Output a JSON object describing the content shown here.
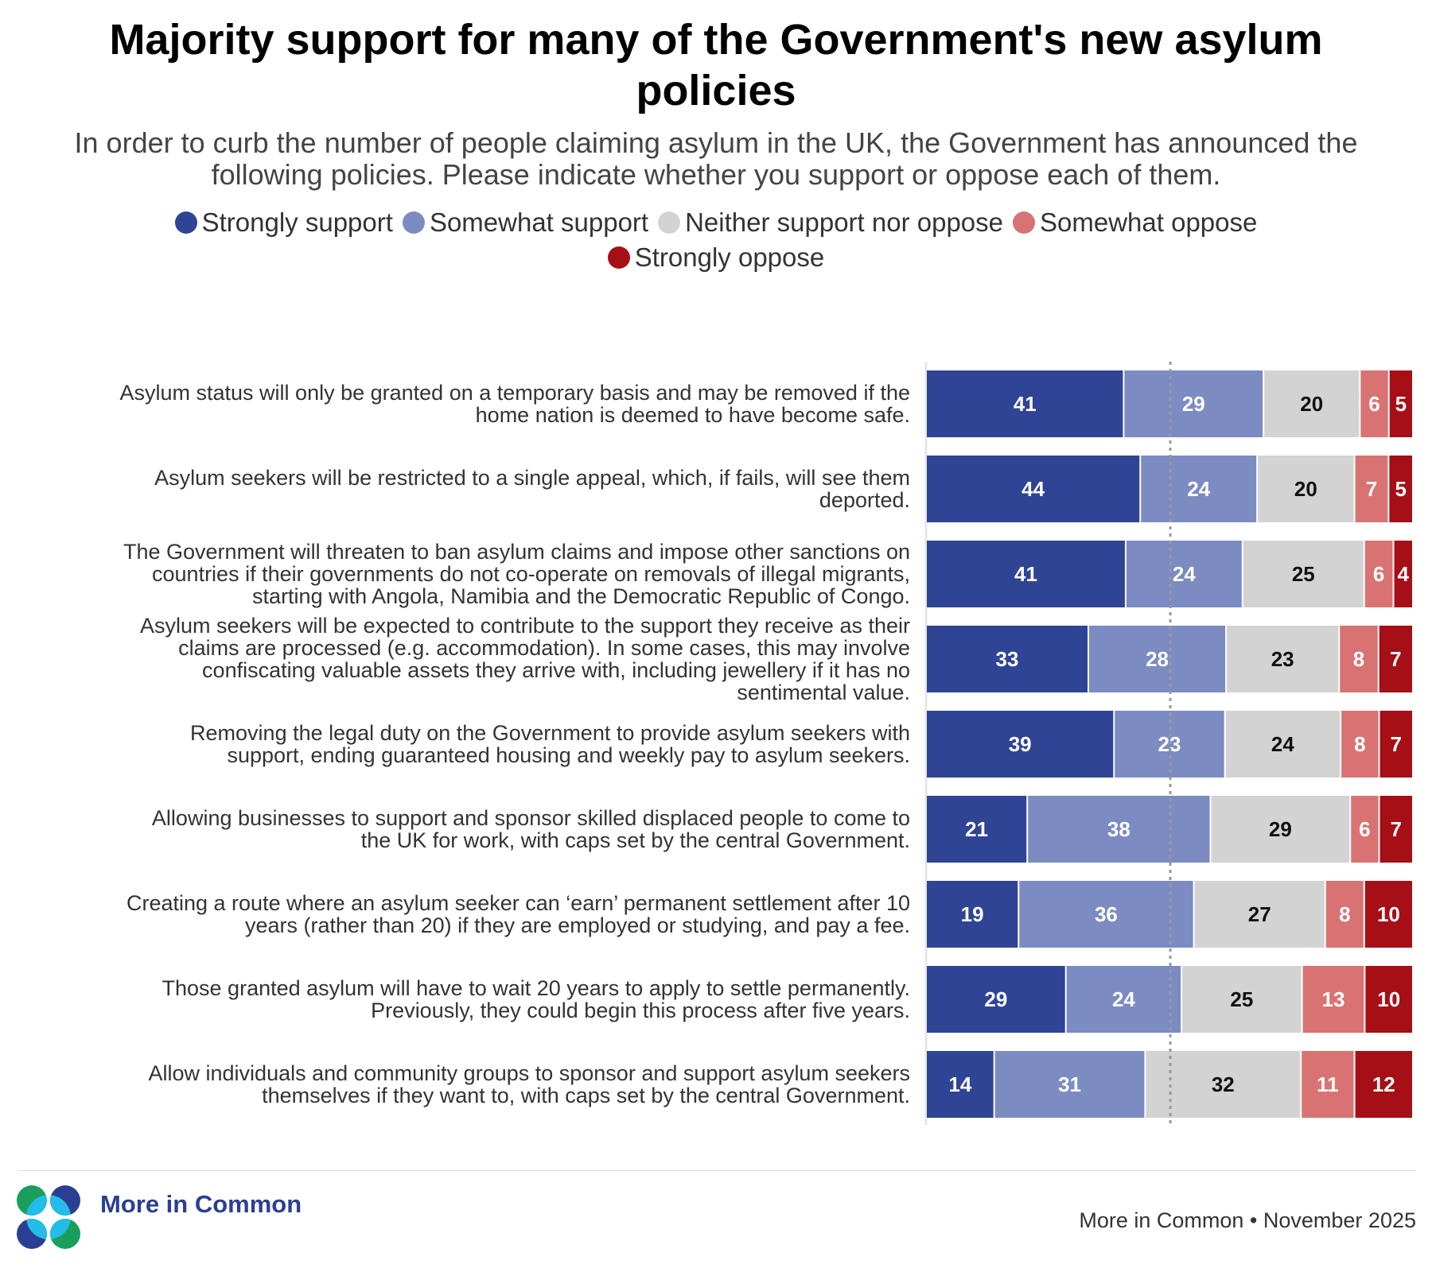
{
  "chart_data": {
    "type": "bar",
    "orientation": "horizontal",
    "stacked": true,
    "title": "Majority support for many of the Government's new asylum policies",
    "subtitle": "In order to curb the number of people claiming asylum in the UK, the Government has announced the following policies. Please indicate whether you support or oppose each of them.",
    "legend_position": "top",
    "reference_line": 50,
    "categories": [
      "Asylum status will only be granted on a temporary basis and may be removed if the home nation is deemed to have become safe.",
      "Asylum seekers will be restricted to a single appeal, which, if fails, will see them deported.",
      "The Government will threaten to ban asylum claims and impose other sanctions on countries if their governments do not co-operate on removals of illegal migrants, starting with Angola, Namibia and the Democratic Republic of Congo.",
      "Asylum seekers will be expected to contribute to the support they receive as their claims are processed (e.g. accommodation). In some cases, this may involve confiscating valuable assets they arrive with, including jewellery if it has no sentimental value.",
      "Removing the legal duty on the Government to provide asylum seekers with support, ending guaranteed housing and weekly pay to asylum seekers.",
      "Allowing businesses to support and sponsor skilled displaced people to come to the UK for work, with caps set by the central Government.",
      "Creating a route where an asylum seeker can ‘earn’ permanent settlement after 10 years (rather than 20) if they are employed or studying, and pay a fee.",
      "Those granted asylum will have to wait 20 years to apply to settle permanently. Previously, they could begin this process after five years.",
      "Allow individuals and community groups to sponsor and support asylum seekers themselves if they want to, with caps set by the central Government."
    ],
    "series": [
      {
        "name": "Strongly support",
        "color": "#2f4494",
        "text_color": "#ffffff",
        "values": [
          41,
          44,
          41,
          33,
          39,
          21,
          19,
          29,
          14
        ]
      },
      {
        "name": "Somewhat support",
        "color": "#7c8bc2",
        "text_color": "#ffffff",
        "values": [
          29,
          24,
          24,
          28,
          23,
          38,
          36,
          24,
          31
        ]
      },
      {
        "name": "Neither support nor oppose",
        "color": "#d3d3d3",
        "text_color": "#111111",
        "values": [
          20,
          20,
          25,
          23,
          24,
          29,
          27,
          25,
          32
        ]
      },
      {
        "name": "Somewhat oppose",
        "color": "#d97373",
        "text_color": "#ffffff",
        "values": [
          6,
          7,
          6,
          8,
          8,
          6,
          8,
          13,
          11
        ]
      },
      {
        "name": "Strongly oppose",
        "color": "#a50f15",
        "text_color": "#ffffff",
        "values": [
          5,
          5,
          4,
          7,
          7,
          7,
          10,
          10,
          12
        ]
      }
    ]
  },
  "labels_lines": [
    [
      "Asylum status will only be granted on a temporary basis and may be removed if the",
      "home nation is deemed to have become safe."
    ],
    [
      "Asylum seekers will be restricted to a single appeal, which, if fails, will see them",
      "deported."
    ],
    [
      "The Government will threaten to ban asylum claims and impose other sanctions on",
      "countries if their governments do not co-operate on removals of illegal migrants,",
      "starting with Angola, Namibia and the Democratic Republic of Congo."
    ],
    [
      "Asylum seekers will be expected to contribute to the support they receive as their",
      "claims are processed (e.g. accommodation). In some cases, this may involve",
      "confiscating valuable assets they arrive with, including jewellery if it has no",
      "sentimental value."
    ],
    [
      "Removing the legal duty on the Government to provide asylum seekers with",
      "support, ending guaranteed housing and weekly pay to asylum seekers."
    ],
    [
      "Allowing businesses to support and sponsor skilled displaced people to come to",
      "the UK for work, with caps set by the central Government."
    ],
    [
      "Creating a route where an asylum seeker can ‘earn’ permanent settlement after 10",
      "years (rather than 20) if they are employed or studying, and pay a fee."
    ],
    [
      "Those granted asylum will have to wait 20 years to apply to settle permanently.",
      "Previously, they could begin this process after five years."
    ],
    [
      "Allow individuals and community groups to sponsor and support asylum seekers",
      "themselves if they want to, with caps set by the central Government."
    ]
  ],
  "logo": {
    "text": "More in Common",
    "colors": [
      "#1a9e5b",
      "#2a3f93",
      "#22bde8"
    ]
  },
  "footer": {
    "source": "More in Common • November 2025"
  }
}
